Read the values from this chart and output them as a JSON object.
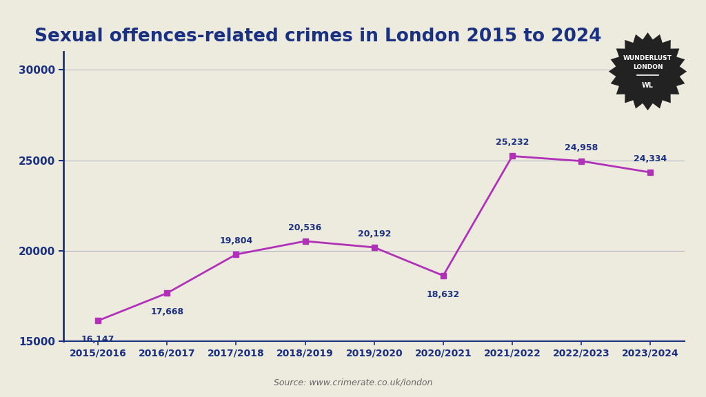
{
  "title": "Sexual offences-related crimes in London 2015 to 2024",
  "title_color": "#1a3080",
  "title_fontsize": 19,
  "categories": [
    "2015/2016",
    "2016/2017",
    "2017/2018",
    "2018/2019",
    "2019/2020",
    "2020/2021",
    "2021/2022",
    "2022/2023",
    "2023/2024"
  ],
  "values": [
    16147,
    17668,
    19804,
    20536,
    20192,
    18632,
    25232,
    24958,
    24334
  ],
  "line_color": "#b030b8",
  "marker_color": "#b030b8",
  "background_color": "#edeade",
  "axis_color": "#1a3080",
  "tick_color": "#1a3080",
  "data_label_color": "#1a3080",
  "ylim": [
    15000,
    31000
  ],
  "yticks": [
    15000,
    20000,
    25000,
    30000
  ],
  "source_text": "Source: www.crimerate.co.uk/london",
  "source_color": "#666666",
  "source_fontsize": 9,
  "badge_bg": "#222222",
  "badge_text_color": "#ffffff"
}
